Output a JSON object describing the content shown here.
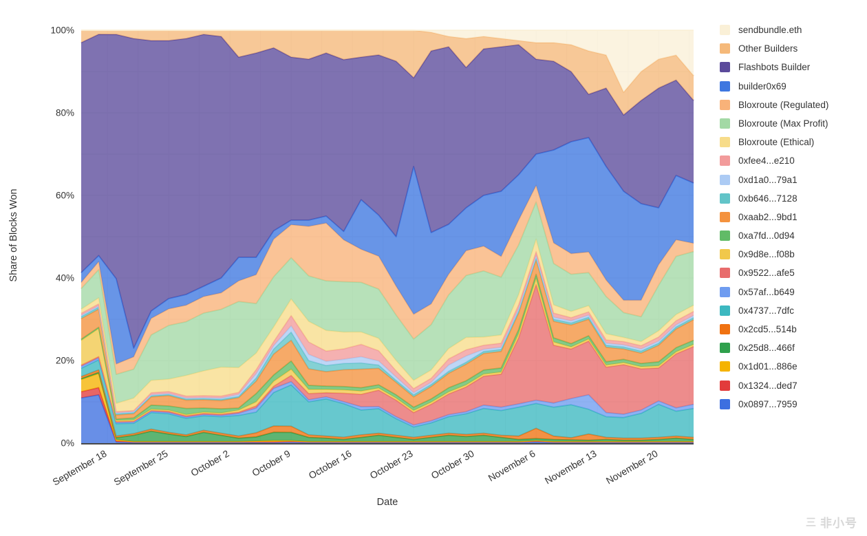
{
  "watermark": {
    "logo_glyph": "三",
    "text": "非小号"
  },
  "chart_data": {
    "type": "area",
    "stacking": "percent",
    "title": "",
    "xlabel": "Date",
    "ylabel": "Share of Blocks Won",
    "ylim": [
      0,
      100
    ],
    "grid": true,
    "legend_position": "right",
    "ytick_values": [
      0,
      20,
      40,
      60,
      80,
      100
    ],
    "ytick_labels": [
      "0%",
      "20%",
      "40%",
      "60%",
      "80%",
      "100%"
    ],
    "ygrid_step": 10,
    "x_total_days": 70,
    "x_step_days": 2,
    "xgrid_step_days": 3.5,
    "xgrid_start_day": 3,
    "x_dates": [
      "Sep 15",
      "Sep 17",
      "Sep 19",
      "Sep 21",
      "Sep 23",
      "Sep 25",
      "Sep 27",
      "Sep 29",
      "Oct 1",
      "Oct 3",
      "Oct 5",
      "Oct 7",
      "Oct 9",
      "Oct 11",
      "Oct 13",
      "Oct 15",
      "Oct 17",
      "Oct 19",
      "Oct 21",
      "Oct 23",
      "Oct 25",
      "Oct 27",
      "Oct 29",
      "Oct 31",
      "Nov 2",
      "Nov 4",
      "Nov 6",
      "Nov 8",
      "Nov 10",
      "Nov 12",
      "Nov 14",
      "Nov 16",
      "Nov 18",
      "Nov 20",
      "Nov 22",
      "Nov 24"
    ],
    "xtick_days": [
      3,
      10,
      17,
      24,
      31,
      38,
      45,
      52,
      59,
      66
    ],
    "xtick_labels": [
      "September 18",
      "September 25",
      "October 2",
      "October 9",
      "October 16",
      "October 23",
      "October 30",
      "November 6",
      "November 13",
      "November 20"
    ],
    "series_bottom_to_top": [
      {
        "name": "0x0897...7959",
        "color": "#3d6fe0",
        "values": [
          11,
          12,
          0.3,
          0.2,
          0.2,
          0.2,
          0.2,
          0.2,
          0.2,
          0.2,
          0.2,
          0.2,
          0.3,
          0.2,
          0.2,
          0.2,
          0.2,
          0.2,
          0.2,
          0.2,
          0.2,
          0.2,
          0.2,
          0.2,
          0.2,
          0.2,
          0.3,
          0.2,
          0.2,
          0.2,
          0.2,
          0.2,
          0.2,
          0.2,
          0.2,
          0.2
        ]
      },
      {
        "name": "0x1324...ded7",
        "color": "#e23b3b",
        "values": [
          1.5,
          1.8,
          0.2,
          0.1,
          0.1,
          0.1,
          0.1,
          0.1,
          0.1,
          0.1,
          0.1,
          0.1,
          0.1,
          0.1,
          0.1,
          0.1,
          0.1,
          0.1,
          0.1,
          0.1,
          0.1,
          0.1,
          0.1,
          0.1,
          0.1,
          0.1,
          0.2,
          0.1,
          0.1,
          0.1,
          0.1,
          0.1,
          0.1,
          0.1,
          0.1,
          0.1
        ]
      },
      {
        "name": "0x1d01...886e",
        "color": "#f5b301",
        "values": [
          3,
          3.5,
          0.3,
          0.1,
          0.1,
          0.1,
          0.1,
          0.1,
          0.1,
          0.1,
          0.2,
          0.3,
          0.2,
          0.1,
          0.1,
          0.1,
          0.1,
          0.1,
          0.1,
          0.1,
          0.1,
          0.1,
          0.1,
          0.1,
          0.1,
          0.1,
          0.1,
          0.1,
          0.1,
          0.1,
          0.1,
          0.1,
          0.1,
          0.1,
          0.1,
          0.1
        ]
      },
      {
        "name": "0x25d8...466f",
        "color": "#2fa04c",
        "values": [
          0.2,
          0.3,
          0.5,
          1.5,
          2.5,
          1.8,
          1.2,
          2.2,
          1.5,
          0.8,
          1,
          2,
          2,
          1,
          0.8,
          0.5,
          1,
          1.5,
          1,
          0.5,
          1,
          1.5,
          1.2,
          1.5,
          1,
          0.5,
          0.5,
          0.5,
          0.4,
          0.3,
          0.5,
          0.3,
          0.3,
          0.5,
          0.8,
          0.5
        ]
      },
      {
        "name": "0x2cd5...514b",
        "color": "#f07211",
        "values": [
          0.5,
          0.6,
          0.4,
          0.4,
          0.5,
          0.4,
          0.4,
          0.5,
          0.5,
          0.5,
          1,
          1.5,
          1.5,
          0.6,
          0.5,
          0.5,
          0.6,
          0.5,
          0.5,
          0.5,
          0.5,
          0.5,
          0.5,
          0.5,
          0.5,
          0.8,
          2.5,
          0.8,
          0.5,
          1.5,
          0.5,
          0.5,
          0.5,
          0.5,
          0.5,
          0.5
        ]
      },
      {
        "name": "0x4737...7dfc",
        "color": "#3cb8c0",
        "values": [
          2,
          2.5,
          3,
          2.5,
          4,
          4.5,
          4,
          3.5,
          4,
          5,
          5,
          8,
          10,
          8,
          9,
          8,
          6,
          6,
          4,
          2.5,
          3,
          4,
          5,
          6,
          6,
          7,
          6,
          7,
          8,
          6,
          5,
          5,
          6,
          8,
          6,
          7
        ]
      },
      {
        "name": "0x57af...b649",
        "color": "#6f9cf0",
        "values": [
          0.5,
          0.5,
          0.3,
          0.3,
          0.3,
          0.3,
          0.3,
          0.3,
          0.3,
          0.5,
          1,
          1,
          0.8,
          0.5,
          0.5,
          0.5,
          0.8,
          0.5,
          0.5,
          0.5,
          0.5,
          0.5,
          0.5,
          0.8,
          0.8,
          0.8,
          0.8,
          1,
          1.5,
          3.5,
          1,
          0.8,
          0.8,
          0.8,
          0.8,
          1
        ]
      },
      {
        "name": "0x9522...afe5",
        "color": "#e86c6c",
        "values": [
          0.3,
          0.3,
          0.2,
          0.2,
          0.2,
          0.3,
          0.3,
          0.3,
          0.3,
          0.3,
          0.5,
          0.5,
          1.5,
          1.5,
          1,
          2,
          3,
          4,
          4,
          3,
          4,
          5,
          6,
          7,
          8,
          16,
          28,
          14,
          12,
          13,
          11,
          12,
          10,
          8,
          13,
          14
        ]
      },
      {
        "name": "0x9d8e...f08b",
        "color": "#f1c84b",
        "values": [
          6,
          7,
          0.3,
          0.3,
          0.3,
          0.3,
          0.3,
          0.3,
          0.3,
          0.5,
          1,
          1.2,
          1.5,
          1,
          0.8,
          0.8,
          0.8,
          0.5,
          0.5,
          0.5,
          0.5,
          0.5,
          0.5,
          0.5,
          0.5,
          1,
          1.5,
          0.8,
          0.5,
          0.5,
          0.5,
          0.5,
          0.5,
          0.5,
          0.5,
          0.5
        ]
      },
      {
        "name": "0xa7fd...0d94",
        "color": "#61bb67",
        "values": [
          0.3,
          0.3,
          0.3,
          0.5,
          1,
          1,
          1.5,
          1,
          1,
          0.5,
          2,
          1.5,
          2,
          1,
          0.8,
          0.8,
          0.8,
          0.8,
          0.8,
          0.8,
          0.8,
          1,
          1,
          1,
          1,
          1,
          1,
          1,
          0.8,
          0.8,
          0.8,
          0.8,
          0.8,
          1,
          1,
          1
        ]
      },
      {
        "name": "0xaab2...9bd1",
        "color": "#f4923e",
        "values": [
          5,
          4.5,
          1,
          1,
          2,
          2.5,
          2,
          2,
          2,
          2.5,
          3,
          5,
          5,
          4,
          3.5,
          4,
          4.5,
          4,
          3,
          2.5,
          3,
          3.5,
          4,
          4,
          4,
          4,
          3.5,
          4,
          4.5,
          4,
          3.5,
          2.5,
          2.5,
          4,
          4.5,
          5
        ]
      },
      {
        "name": "0xb646...7128",
        "color": "#62c4c8",
        "values": [
          0.5,
          0.5,
          0.3,
          0.3,
          0.3,
          0.3,
          0.3,
          0.3,
          0.3,
          0.3,
          0.8,
          1.2,
          2,
          2,
          1.5,
          1.5,
          1.5,
          0.8,
          0.5,
          0.5,
          0.5,
          0.5,
          0.5,
          0.5,
          0.5,
          0.5,
          0.5,
          0.5,
          0.5,
          0.5,
          0.5,
          0.5,
          0.5,
          0.5,
          0.5,
          0.5
        ]
      },
      {
        "name": "0xd1a0...79a1",
        "color": "#accbf4",
        "values": [
          0.3,
          0.3,
          0.2,
          0.2,
          0.2,
          0.2,
          0.2,
          0.2,
          0.3,
          0.5,
          1,
          0.8,
          1.5,
          1.5,
          1,
          1,
          1.5,
          1,
          0.8,
          0.5,
          0.5,
          1.5,
          1.5,
          0.5,
          0.5,
          0.5,
          0.5,
          0.5,
          0.5,
          0.5,
          0.5,
          0.5,
          0.5,
          0.5,
          0.5,
          0.5
        ]
      },
      {
        "name": "0xfee4...e210",
        "color": "#f29b9b",
        "values": [
          0.5,
          0.5,
          0.3,
          0.3,
          0.5,
          0.5,
          0.5,
          0.5,
          0.5,
          0.5,
          1,
          1,
          2.5,
          3,
          2.5,
          2.5,
          3,
          2.5,
          1.5,
          1,
          1,
          1.5,
          1.5,
          1,
          1,
          1,
          1,
          1,
          0.8,
          0.8,
          0.8,
          0.8,
          0.8,
          1,
          1,
          1
        ]
      },
      {
        "name": "Bloxroute (Ethical)",
        "color": "#f7dc8a",
        "values": [
          1,
          1.5,
          2,
          3,
          3,
          3,
          5,
          6,
          7,
          6,
          4,
          3.5,
          4,
          5,
          5,
          4,
          3,
          3,
          2.5,
          2,
          2,
          2.5,
          3,
          2,
          2,
          2.5,
          3,
          2,
          1.5,
          1.5,
          1.5,
          1,
          1,
          1.5,
          1.5,
          1.5
        ]
      },
      {
        "name": "Bloxroute (Max Profit)",
        "color": "#a3d9a5",
        "values": [
          5,
          7,
          7,
          7,
          11,
          13,
          13,
          14,
          14,
          16,
          12,
          12,
          10,
          11,
          12,
          12,
          12,
          12,
          11,
          10,
          11,
          13,
          15,
          16,
          14,
          12,
          9,
          10,
          9,
          8,
          9,
          6,
          6,
          11,
          14,
          13
        ]
      },
      {
        "name": "Bloxroute (Regulated)",
        "color": "#f8b279",
        "values": [
          1.5,
          2,
          2.5,
          3,
          4,
          4,
          4,
          4,
          4,
          5,
          7,
          9,
          8,
          12,
          14,
          10,
          8,
          8,
          7,
          6,
          5,
          5,
          6,
          6,
          5,
          6,
          4,
          5,
          5,
          5,
          4,
          3,
          4,
          5,
          4,
          2
        ]
      },
      {
        "name": "builder0x69",
        "color": "#3e77e0",
        "values": [
          2.4,
          1.5,
          20.6,
          2.1,
          1.8,
          2.5,
          2.6,
          2.5,
          3.6,
          5.7,
          4.2,
          2,
          1.1,
          1.5,
          1.7,
          2,
          12,
          10,
          12,
          35.8,
          17.3,
          12.1,
          10.4,
          12.3,
          15.8,
          11,
          7.6,
          22.5,
          27.1,
          27.7,
          27.5,
          26.4,
          23.4,
          13.8,
          15.5,
          14.6
        ]
      },
      {
        "name": "Flashbots Builder",
        "color": "#5b4a9b",
        "values": [
          56,
          55,
          59,
          75,
          65.5,
          62.5,
          62,
          61,
          58.5,
          48.5,
          49.5,
          43.8,
          39.5,
          39,
          39.5,
          41,
          34.5,
          39,
          42.5,
          21.5,
          44,
          43,
          34,
          35.5,
          35,
          31.5,
          23,
          21.5,
          17,
          10.5,
          19,
          18.5,
          25,
          29,
          23,
          20
        ]
      },
      {
        "name": "Other Builders",
        "color": "#f5b97a",
        "values": [
          3,
          1,
          1,
          2,
          2.5,
          2.5,
          2,
          1,
          1.5,
          6.5,
          5.5,
          4.2,
          6.5,
          7,
          5.5,
          7,
          6.5,
          6,
          7.5,
          11.5,
          4.5,
          2.5,
          7,
          3,
          2,
          1,
          4,
          4.5,
          6.5,
          10.5,
          8,
          5.5,
          7,
          7,
          6,
          6
        ]
      },
      {
        "name": "sendbundle.eth",
        "color": "#faf0d7",
        "values": [
          0,
          0,
          0,
          0,
          0,
          0,
          0,
          0,
          0,
          0,
          0,
          0,
          0,
          0,
          0,
          0,
          0,
          0,
          0,
          0,
          0.5,
          1.5,
          2,
          1.5,
          2,
          2.5,
          3,
          3,
          3.5,
          5,
          6,
          15,
          10,
          7,
          6,
          11
        ]
      }
    ]
  }
}
